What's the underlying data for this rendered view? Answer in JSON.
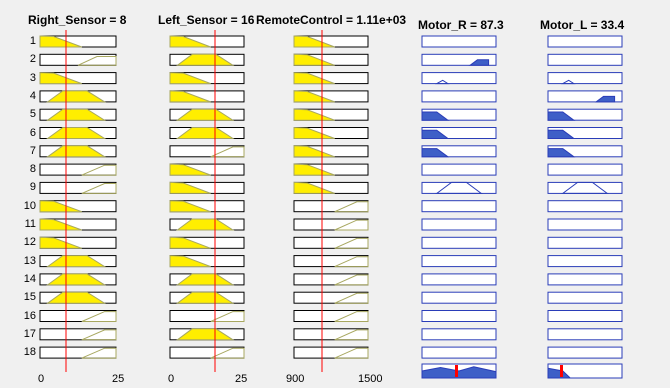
{
  "headers": {
    "right_sensor": "Right_Sensor = 8",
    "left_sensor": "Left_Sensor = 16",
    "remote_control": "RemoteControl = 1.11e+03",
    "motor_r": "Motor_R = 87.3",
    "motor_l": "Motor_L = 33.4"
  },
  "row_labels": [
    "1",
    "2",
    "3",
    "4",
    "5",
    "6",
    "7",
    "8",
    "9",
    "10",
    "11",
    "12",
    "13",
    "14",
    "15",
    "16",
    "17",
    "18"
  ],
  "ticks": {
    "right_min": "0",
    "right_max": "25",
    "left_min": "0",
    "left_max": "25",
    "remote_min": "900",
    "remote_max": "1500"
  },
  "colors": {
    "input_fill": "#ffee00",
    "input_outline": "#a8a860",
    "output_fill": "#3e5fc7",
    "output_outline": "#2a3db8",
    "indicator_line": "#ff0000",
    "box_border": "#000000"
  },
  "inputs": {
    "right_sensor": {
      "value": 8,
      "range": [
        0,
        25
      ],
      "mf": [
        "L",
        "N",
        "L",
        "M",
        "M",
        "M",
        "M",
        "H",
        "H",
        "L",
        "L",
        "L",
        "M",
        "M",
        "M",
        "H",
        "H",
        "H"
      ]
    },
    "left_sensor": {
      "value": 16,
      "range": [
        0,
        25
      ],
      "mf": [
        "L",
        "M",
        "L",
        "L",
        "M",
        "M",
        "H",
        "L",
        "L",
        "L",
        "M",
        "L",
        "L",
        "M",
        "M",
        "H",
        "M",
        "H"
      ]
    },
    "remote_control": {
      "value": 1110,
      "range": [
        900,
        1500
      ],
      "mf": [
        "L",
        "L",
        "L",
        "L",
        "L",
        "L",
        "L",
        "L",
        "L",
        "H",
        "H",
        "H",
        "H",
        "H",
        "H",
        "H",
        "H",
        "H"
      ]
    }
  },
  "outputs": {
    "motor_r": {
      "value": 87.3,
      "mf": [
        "N",
        "H",
        "Z",
        "N",
        "L",
        "L",
        "L",
        "N",
        "M",
        "N",
        "N",
        "N",
        "N",
        "N",
        "N",
        "N",
        "N",
        "N"
      ]
    },
    "motor_l": {
      "value": 33.4,
      "mf": [
        "N",
        "N",
        "Z",
        "H",
        "L",
        "L",
        "L",
        "N",
        "M",
        "N",
        "N",
        "N",
        "N",
        "N",
        "N",
        "N",
        "N",
        "N"
      ]
    }
  }
}
